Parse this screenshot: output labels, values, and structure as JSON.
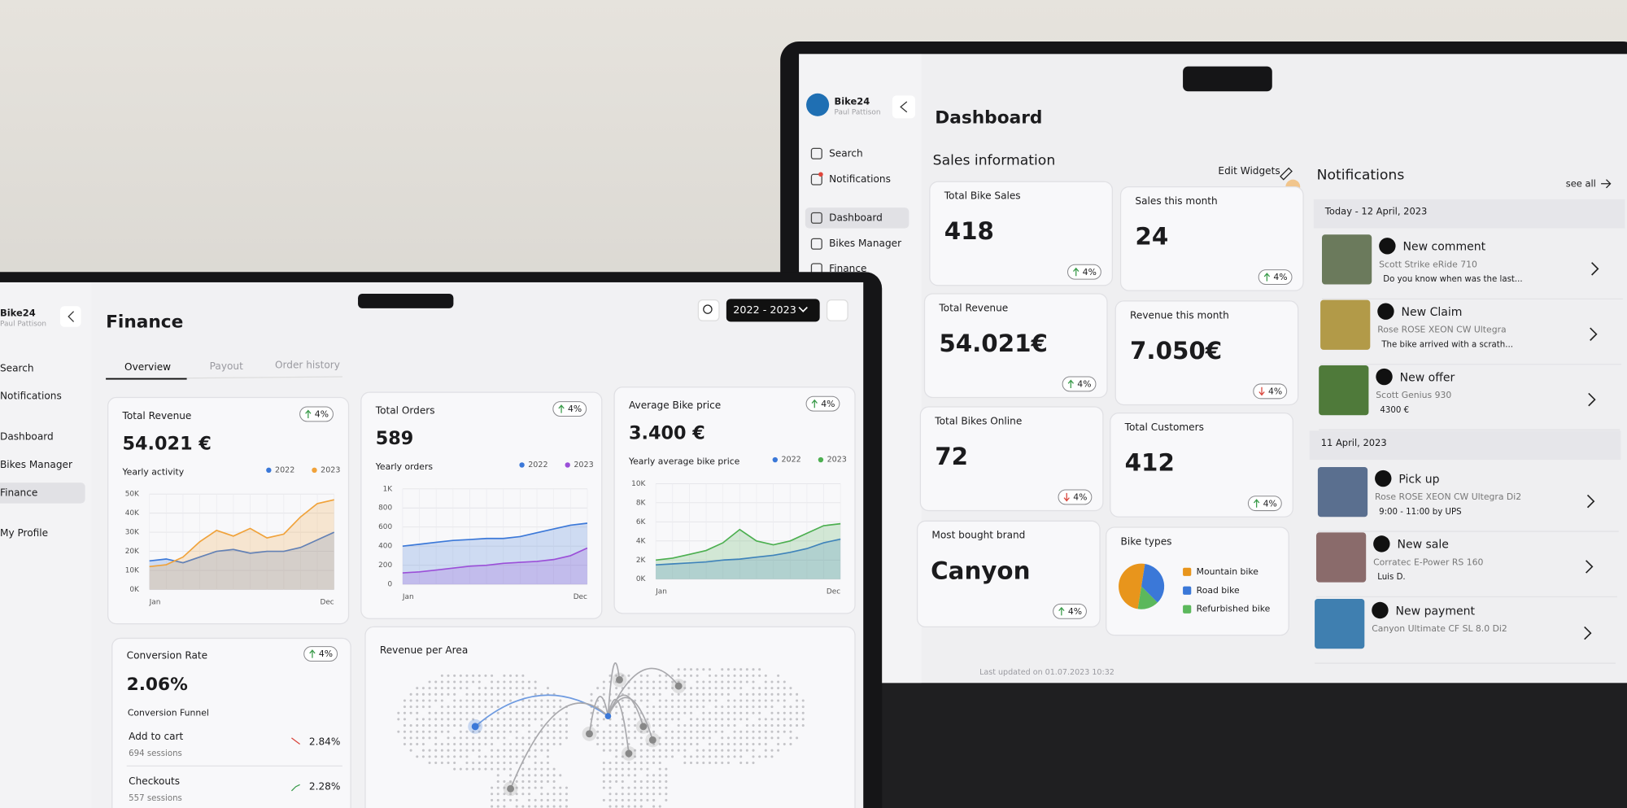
{
  "dashboard": {
    "brand": "Bike24",
    "user": "Paul Pattison",
    "nav": [
      "Search",
      "Notifications",
      "Dashboard",
      "Bikes Manager",
      "Finance"
    ],
    "active_nav": 2,
    "title": "Dashboard",
    "section_title": "Sales information",
    "edit_widgets": "Edit Widgets",
    "cards": [
      {
        "label": "Total Bike Sales",
        "value": "418",
        "change": "4%",
        "trend": "up"
      },
      {
        "label": "Sales this month",
        "value": "24",
        "change": "4%",
        "trend": "up"
      },
      {
        "label": "Total Revenue",
        "value": "54.021€",
        "change": "4%",
        "trend": "up"
      },
      {
        "label": "Revenue this month",
        "value": "7.050€",
        "change": "4%",
        "trend": "down"
      },
      {
        "label": "Total Bikes Online",
        "value": "72",
        "change": "4%",
        "trend": "down"
      },
      {
        "label": "Total Customers",
        "value": "412",
        "change": "4%",
        "trend": "up"
      }
    ],
    "brand_card": {
      "label": "Most bought brand",
      "value": "Canyon",
      "change": "4%",
      "trend": "up"
    },
    "bike_types": {
      "label": "Bike types",
      "items": [
        {
          "name": "Mountain bike",
          "color": "#e8951c",
          "value": 50
        },
        {
          "name": "Road bike",
          "color": "#3b78d8",
          "value": 35
        },
        {
          "name": "Refurbished bike",
          "color": "#5cb85c",
          "value": 15
        }
      ]
    },
    "notifications": {
      "title": "Notifications",
      "see_all": "see all",
      "groups": [
        {
          "date": "Today - 12 April, 2023",
          "items": [
            {
              "title": "New comment",
              "subtitle": "Scott Strike eRide 710",
              "text": "Do you know when was the last..."
            },
            {
              "title": "New Claim",
              "subtitle": "Rose ROSE XEON CW Ultegra",
              "text": "The bike arrived with a scrath..."
            },
            {
              "title": "New offer",
              "subtitle": "Scott Genius 930",
              "text": "4300 €"
            }
          ]
        },
        {
          "date": "11 April, 2023",
          "items": [
            {
              "title": "Pick up",
              "subtitle": "Rose ROSE XEON CW Ultegra Di2",
              "text": "9:00 - 11:00 by UPS"
            },
            {
              "title": "New sale",
              "subtitle": "Corratec E-Power RS 160",
              "text": "Luis D."
            },
            {
              "title": "New payment",
              "subtitle": "Canyon Ultimate CF SL 8.0 Di2"
            }
          ]
        }
      ]
    },
    "footer": "Last updated on 01.07.2023 10:32"
  },
  "finance": {
    "brand": "Bike24",
    "user": "Paul Pattison",
    "nav": [
      "Search",
      "Notifications",
      "Dashboard",
      "Bikes Manager",
      "Finance",
      "My Profile"
    ],
    "active_nav": 4,
    "title": "Finance",
    "period": "2022 - 2023",
    "tabs": [
      "Overview",
      "Payout",
      "Order history"
    ],
    "active_tab": 0,
    "cards": [
      {
        "title": "Total Revenue",
        "value": "54.021 €",
        "change": "4%",
        "trend": "up",
        "subtitle": "Yearly activity",
        "chart": {
          "type": "area",
          "categories": [
            "Jan",
            null,
            null,
            null,
            null,
            null,
            null,
            null,
            null,
            null,
            null,
            "Dec"
          ],
          "series": [
            {
              "name": "2022",
              "color": "#3b78d8",
              "values": [
                15000,
                16000,
                14000,
                17000,
                20000,
                21000,
                19000,
                20000,
                20000,
                22000,
                26000,
                30000
              ]
            },
            {
              "name": "2023",
              "color": "#f0a23a",
              "values": [
                12000,
                13000,
                17000,
                25000,
                31000,
                28000,
                32000,
                27000,
                29000,
                38000,
                45000,
                47000
              ]
            }
          ],
          "ylim": [
            0,
            50000
          ],
          "yticks": [
            {
              "value": 0,
              "label": "0K"
            },
            {
              "value": 10000,
              "label": "10K"
            },
            {
              "value": 20000,
              "label": "20K"
            },
            {
              "value": 30000,
              "label": "30K"
            },
            {
              "value": 40000,
              "label": "40K"
            },
            {
              "value": 50000,
              "label": "50K"
            }
          ]
        }
      },
      {
        "title": "Total Orders",
        "value": "589",
        "change": "4%",
        "trend": "up",
        "subtitle": "Yearly orders",
        "chart": {
          "type": "area",
          "categories": [
            "Jan",
            null,
            null,
            null,
            null,
            null,
            null,
            null,
            null,
            null,
            null,
            "Dec"
          ],
          "series": [
            {
              "name": "2022",
              "color": "#3b78d8",
              "values": [
                400,
                420,
                440,
                460,
                470,
                480,
                480,
                500,
                540,
                580,
                620,
                640
              ]
            },
            {
              "name": "2023",
              "color": "#9b4fd8",
              "values": [
                120,
                130,
                150,
                170,
                190,
                200,
                220,
                230,
                240,
                260,
                300,
                380
              ]
            }
          ],
          "ylim": [
            0,
            1000
          ],
          "yticks": [
            0,
            200,
            400,
            600,
            800,
            {
              "value": 1000,
              "label": "1K"
            }
          ]
        }
      },
      {
        "title": "Average Bike price",
        "value": "3.400 €",
        "change": "4%",
        "trend": "up",
        "subtitle": "Yearly average bike price",
        "chart": {
          "type": "area",
          "categories": [
            "Jan",
            null,
            null,
            null,
            null,
            null,
            null,
            null,
            null,
            null,
            null,
            "Dec"
          ],
          "series": [
            {
              "name": "2022",
              "color": "#3b78d8",
              "values": [
                1500,
                1600,
                1700,
                1800,
                2000,
                2100,
                2300,
                2500,
                2800,
                3200,
                3800,
                4200
              ]
            },
            {
              "name": "2023",
              "color": "#4caf50",
              "values": [
                2000,
                2200,
                2600,
                3000,
                3800,
                5200,
                4000,
                3600,
                4000,
                4800,
                5600,
                5800
              ]
            }
          ],
          "ylim": [
            0,
            10000
          ],
          "yticks": [
            {
              "value": 0,
              "label": "0K"
            },
            {
              "value": 2000,
              "label": "2K"
            },
            {
              "value": 4000,
              "label": "4K"
            },
            {
              "value": 6000,
              "label": "6K"
            },
            {
              "value": 8000,
              "label": "8K"
            },
            {
              "value": 10000,
              "label": "10K"
            }
          ]
        }
      }
    ],
    "conversion": {
      "title": "Conversion Rate",
      "value": "2.06%",
      "change": "4%",
      "trend": "up",
      "subtitle": "Conversion Funnel",
      "items": [
        {
          "label": "Add to cart",
          "sessions": "694 sessions",
          "rate": "2.84%",
          "trend": "down"
        },
        {
          "label": "Checkouts",
          "sessions": "557 sessions",
          "rate": "2.28%",
          "trend": "up"
        }
      ]
    },
    "map_title": "Revenue per Area"
  }
}
